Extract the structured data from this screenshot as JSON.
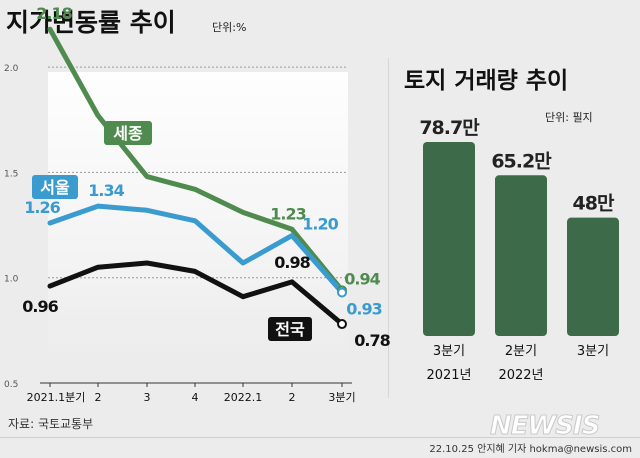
{
  "chart_data": [
    {
      "type": "line",
      "title": "지가변동률 추이",
      "unit": "단위:%",
      "categories": [
        "2021.1분기",
        "2",
        "3",
        "4",
        "2022.1",
        "2",
        "3분기"
      ],
      "ylim": [
        0.5,
        2.2
      ],
      "yticks": [
        "2.0",
        "1.5",
        "1.0",
        "0.5"
      ],
      "grid": "dashed horizontal",
      "series": [
        {
          "name": "세종",
          "color": "#4f8a4f",
          "values": [
            2.18,
            1.77,
            1.48,
            1.42,
            1.31,
            1.23,
            0.94
          ],
          "labels": [
            "2.18",
            "",
            "",
            "",
            "",
            "1.23",
            "0.94"
          ]
        },
        {
          "name": "서울",
          "color": "#3a9bcf",
          "values": [
            1.26,
            1.34,
            1.32,
            1.27,
            1.07,
            1.2,
            0.93
          ],
          "labels": [
            "1.26",
            "1.34",
            "",
            "",
            "",
            "1.20",
            "0.93"
          ]
        },
        {
          "name": "전국",
          "color": "#111111",
          "values": [
            0.96,
            1.05,
            1.07,
            1.03,
            0.91,
            0.98,
            0.78
          ],
          "labels": [
            "0.96",
            "",
            "",
            "",
            "",
            "0.98",
            "0.78"
          ]
        }
      ]
    },
    {
      "type": "bar",
      "title": "토지 거래량 추이",
      "unit": "단위: 필지",
      "bar_color": "#3d6b4a",
      "categories": [
        {
          "line1": "3분기",
          "line2": "2021년"
        },
        {
          "line1": "2분기",
          "line2": "2022년"
        },
        {
          "line1": "3분기",
          "line2": ""
        }
      ],
      "values": [
        78.7,
        65.2,
        48
      ],
      "value_labels": [
        "78.7만",
        "65.2만",
        "48만"
      ],
      "ylim": [
        0,
        85
      ]
    }
  ],
  "source": "자료: 국토교통부",
  "credit": "22.10.25 안지혜 기자 hokma@newsis.com",
  "watermark": "NEWSIS"
}
